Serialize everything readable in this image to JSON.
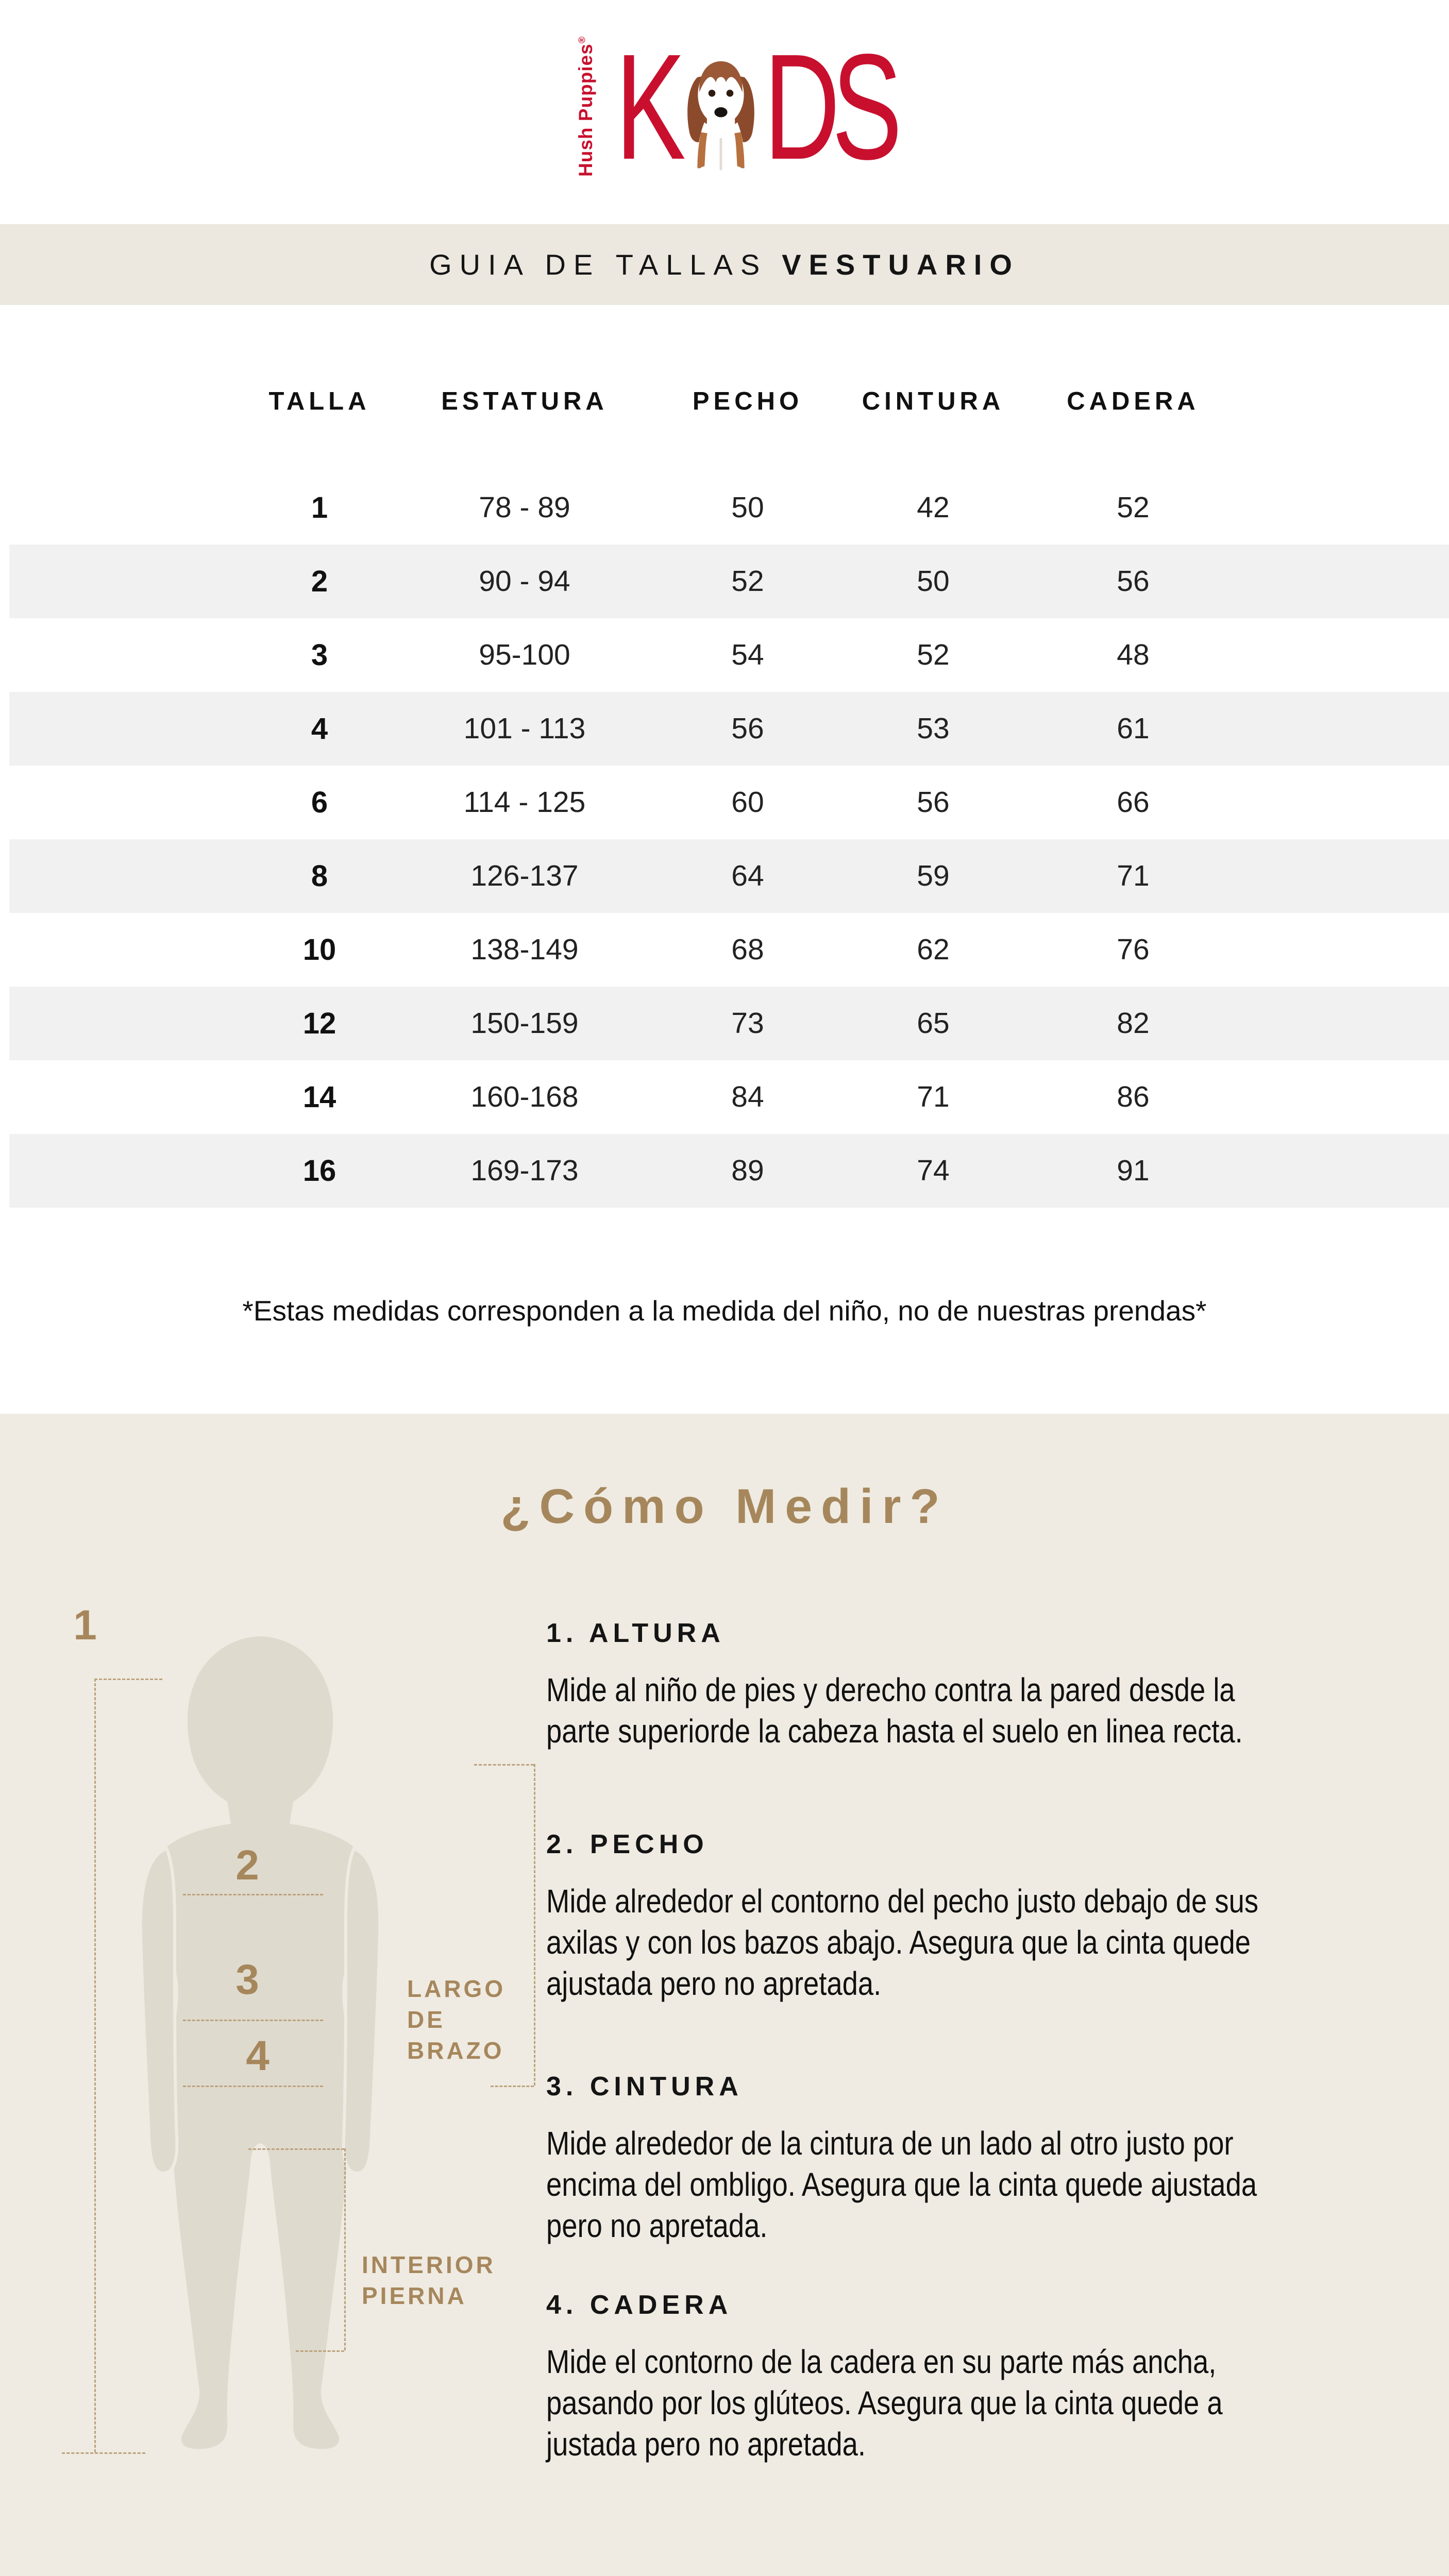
{
  "logo": {
    "brand_vertical": "Hush Puppies",
    "registered_mark": "®",
    "letter_k": "K",
    "letter_d_s": "DS"
  },
  "title_band": {
    "light": "GUIA DE TALLAS",
    "bold": "VESTUARIO"
  },
  "size_table": {
    "columns": [
      "TALLA",
      "ESTATURA",
      "PECHO",
      "CINTURA",
      "CADERA"
    ],
    "rows": [
      [
        "1",
        "78 - 89",
        "50",
        "42",
        "52"
      ],
      [
        "2",
        "90 - 94",
        "52",
        "50",
        "56"
      ],
      [
        "3",
        "95-100",
        "54",
        "52",
        "48"
      ],
      [
        "4",
        "101 - 113",
        "56",
        "53",
        "61"
      ],
      [
        "6",
        "114 - 125",
        "60",
        "56",
        "66"
      ],
      [
        "8",
        "126-137",
        "64",
        "59",
        "71"
      ],
      [
        "10",
        "138-149",
        "68",
        "62",
        "76"
      ],
      [
        "12",
        "150-159",
        "73",
        "65",
        "82"
      ],
      [
        "14",
        "160-168",
        "84",
        "71",
        "86"
      ],
      [
        "16",
        "169-173",
        "89",
        "74",
        "91"
      ]
    ]
  },
  "footnote": "*Estas medidas corresponden a la medida del niño, no de nuestras prendas*",
  "how_to_measure": {
    "title": "¿Cómo Medir?",
    "sections": [
      {
        "heading": "1. ALTURA",
        "body": "Mide al niño de pies y derecho contra la pared desde la\nparte superiorde la cabeza hasta el suelo en linea recta."
      },
      {
        "heading": "2. PECHO",
        "body": "Mide alrededor el contorno del pecho  justo debajo de sus\naxilas y con los bazos abajo. Asegura que la cinta quede\najustada pero no apretada."
      },
      {
        "heading": "3. CINTURA",
        "body": "Mide alrededor de la cintura de un lado al otro justo por\nencima del ombligo. Asegura que la cinta quede ajustada\npero no apretada."
      },
      {
        "heading": "4. CADERA",
        "body": "Mide el contorno de la cadera en su parte más ancha,\npasando por los glúteos. Asegura que la cinta quede a\njustada pero no apretada."
      }
    ],
    "diagram": {
      "marker_1": "1",
      "marker_2": "2",
      "marker_3": "3",
      "marker_4": "4",
      "arm_label": "LARGO\nDE\nBRAZO",
      "leg_label": "INTERIOR\nPIERNA"
    }
  },
  "colors": {
    "brand_red": "#C8102E",
    "tan": "#A6875C",
    "beige": "#EFEBE2",
    "table_stripe": "#F1F1F1",
    "silhouette": "#DFDACE"
  }
}
